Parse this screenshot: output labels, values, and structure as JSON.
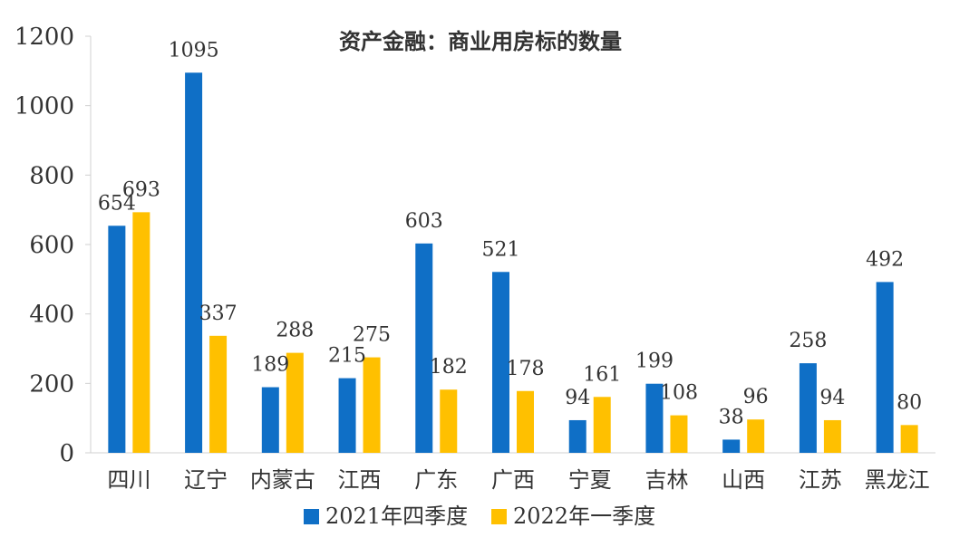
{
  "chart_data": {
    "type": "bar",
    "title": "资产金融：商业用房标的数量",
    "xlabel": "",
    "ylabel": "",
    "ylim": [
      0,
      1200
    ],
    "yticks": [
      0,
      200,
      400,
      600,
      800,
      1000,
      1200
    ],
    "grid": false,
    "legend_position": "bottom",
    "categories": [
      "四川",
      "辽宁",
      "内蒙古",
      "江西",
      "广东",
      "广西",
      "宁夏",
      "吉林",
      "山西",
      "江苏",
      "黑龙江"
    ],
    "series": [
      {
        "name": "2021年四季度",
        "color": "#0f6fc6",
        "values": [
          654,
          1095,
          189,
          215,
          603,
          521,
          94,
          199,
          38,
          258,
          492
        ]
      },
      {
        "name": "2022年一季度",
        "color": "#ffc000",
        "values": [
          693,
          337,
          288,
          275,
          182,
          178,
          161,
          108,
          96,
          94,
          80
        ]
      }
    ]
  }
}
